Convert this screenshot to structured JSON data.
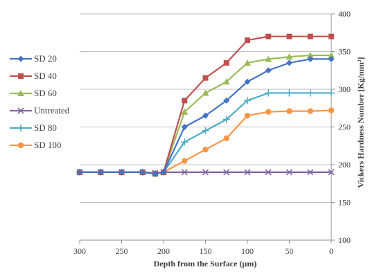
{
  "chart_data": {
    "type": "line",
    "xlabel": "Depth from the Surface (µm)",
    "ylabel": "Vickers Hardness Number [Kg/mm²]",
    "xlim": [
      300,
      0
    ],
    "ylim": [
      100,
      400
    ],
    "x_reversed": true,
    "x_ticks": [
      300,
      250,
      200,
      150,
      100,
      50,
      0
    ],
    "y_ticks": [
      100,
      150,
      200,
      250,
      300,
      350,
      400
    ],
    "y_axis_position": "right",
    "grid": "horizontal",
    "legend_position": "left",
    "x": [
      300,
      275,
      250,
      225,
      210,
      200,
      175,
      150,
      125,
      100,
      75,
      50,
      25,
      0
    ],
    "series": [
      {
        "name": "SD 20",
        "color": "#4472C4",
        "marker": "diamond",
        "values": [
          190,
          190,
          190,
          190,
          188,
          190,
          250,
          265,
          285,
          310,
          325,
          335,
          340,
          340
        ]
      },
      {
        "name": "SD 40",
        "color": "#C0504D",
        "marker": "square",
        "values": [
          190,
          190,
          190,
          190,
          188,
          190,
          285,
          315,
          335,
          365,
          370,
          370,
          370,
          370
        ]
      },
      {
        "name": "SD 60",
        "color": "#9BBB59",
        "marker": "triangle",
        "values": [
          190,
          190,
          190,
          190,
          188,
          190,
          270,
          295,
          310,
          335,
          340,
          343,
          345,
          345
        ]
      },
      {
        "name": "Untreated",
        "color": "#8064A2",
        "marker": "x",
        "values": [
          190,
          190,
          190,
          190,
          189,
          190,
          190,
          190,
          190,
          190,
          190,
          190,
          190,
          190
        ]
      },
      {
        "name": "SD 80",
        "color": "#4BACC6",
        "marker": "star",
        "values": [
          190,
          190,
          190,
          190,
          188,
          190,
          230,
          245,
          260,
          285,
          295,
          295,
          295,
          295
        ]
      },
      {
        "name": "SD 100",
        "color": "#F79646",
        "marker": "circle",
        "values": [
          190,
          190,
          190,
          190,
          188,
          190,
          205,
          220,
          235,
          265,
          270,
          271,
          271,
          272
        ]
      }
    ]
  }
}
